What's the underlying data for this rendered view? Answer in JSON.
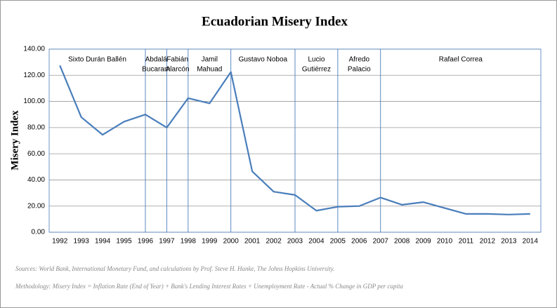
{
  "chart_data": {
    "type": "line",
    "title": "Ecuadorian Misery Index",
    "y_label": "Misery Index",
    "x": [
      1992,
      1993,
      1994,
      1995,
      1996,
      1997,
      1998,
      1999,
      2000,
      2001,
      2002,
      2003,
      2004,
      2005,
      2006,
      2007,
      2008,
      2009,
      2010,
      2011,
      2012,
      2013,
      2014
    ],
    "values": [
      127.5,
      88,
      74.5,
      84.5,
      90,
      80,
      102.5,
      98.5,
      122.5,
      46.5,
      31,
      28.5,
      16.5,
      19.5,
      20,
      26.5,
      21,
      23,
      18.5,
      14,
      14,
      13.5,
      14
    ],
    "color": "#4a7ebb",
    "xlim": [
      1991.5,
      2014.5
    ],
    "xticks": [
      1992,
      1993,
      1994,
      1995,
      1996,
      1997,
      1998,
      1999,
      2000,
      2001,
      2002,
      2003,
      2004,
      2005,
      2006,
      2007,
      2008,
      2009,
      2010,
      2011,
      2012,
      2013,
      2014
    ],
    "ylim": [
      0,
      140
    ],
    "yticks": [
      {
        "value": 0,
        "label": "0.00"
      },
      {
        "value": 20,
        "label": "20.00"
      },
      {
        "value": 40,
        "label": "40.00"
      },
      {
        "value": 60,
        "label": "60.00"
      },
      {
        "value": 80,
        "label": "80.00"
      },
      {
        "value": 100,
        "label": "100.00"
      },
      {
        "value": 120,
        "label": "120.00"
      },
      {
        "value": 140,
        "label": "140.00"
      }
    ],
    "grid": true,
    "dividers": [
      1996,
      1997,
      1998,
      2000,
      2003,
      2005,
      2007
    ],
    "presidents": [
      [
        "Sixto Durán Ballén"
      ],
      [
        "Abdalá",
        "Bucaram"
      ],
      [
        "Fabián",
        "Alarcón"
      ],
      [
        "Jamil",
        "Mahuad"
      ],
      [
        "Gustavo Noboa"
      ],
      [
        "Lucio",
        "Gutiérrez"
      ],
      [
        "Afredo",
        "Palacio"
      ],
      [
        "Rafael Correa"
      ]
    ],
    "sources": "Sources: World Bank, International Monetary Fund, and calculations by Prof. Steve H. Hanke, The Johns Hopkins University.",
    "methodology": "Methodology:  Misery Index = Inflation Rate (End of Year) + Bank's Lending Interest Rates + Unemployment Rate - Actual % Change in GDP per capita"
  }
}
